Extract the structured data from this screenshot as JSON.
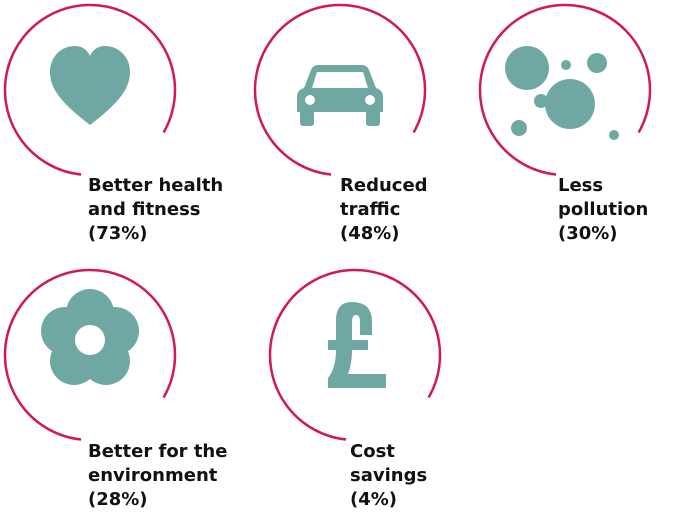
{
  "items": [
    {
      "label_lines": [
        "Better health",
        "and fitness"
      ],
      "share": "(73%)"
    },
    {
      "label_lines": [
        "Reduced",
        "traffic"
      ],
      "share": "(48%)"
    },
    {
      "label_lines": [
        "Less",
        "pollution"
      ],
      "share": "(30%)"
    },
    {
      "label_lines": [
        "Better for the",
        "environment"
      ],
      "share": "(28%)"
    },
    {
      "label_lines": [
        "Cost",
        "savings"
      ],
      "share": "(4%)"
    }
  ]
}
